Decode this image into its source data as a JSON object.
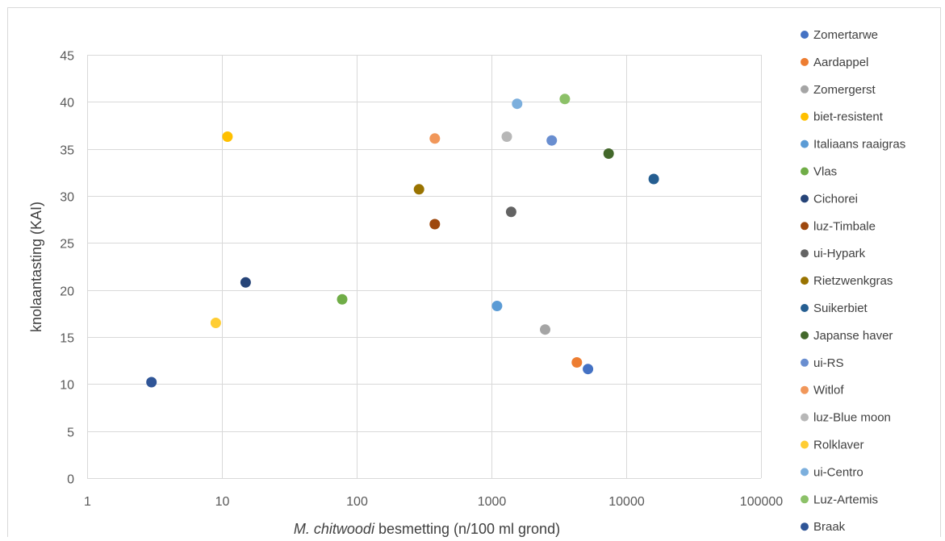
{
  "chart_data": {
    "type": "scatter",
    "title": "",
    "xlabel_italic": "M. chitwoodi",
    "xlabel_rest": " besmetting (n/100 ml grond)",
    "ylabel": "knolaantasting (KAI)",
    "x_scale": "log",
    "xlim": [
      1,
      100000
    ],
    "ylim": [
      0,
      45
    ],
    "x_ticks": [
      1,
      10,
      100,
      1000,
      10000,
      100000
    ],
    "x_tick_labels": [
      "1",
      "10",
      "100",
      "1000",
      "10000",
      "100000"
    ],
    "y_ticks": [
      0,
      5,
      10,
      15,
      20,
      25,
      30,
      35,
      40,
      45
    ],
    "y_tick_labels": [
      "0",
      "5",
      "10",
      "15",
      "20",
      "25",
      "30",
      "35",
      "40",
      "45"
    ],
    "grid": true,
    "legend_position": "right",
    "series": [
      {
        "name": "Zomertarwe",
        "color": "#4472C4",
        "points": [
          [
            5200,
            11.6
          ]
        ]
      },
      {
        "name": "Aardappel",
        "color": "#ED7D31",
        "points": [
          [
            4300,
            12.3
          ]
        ]
      },
      {
        "name": "Zomergerst",
        "color": "#A5A5A5",
        "points": [
          [
            2500,
            15.8
          ]
        ]
      },
      {
        "name": "biet-resistent",
        "color": "#FFC000",
        "points": [
          [
            11,
            36.3
          ]
        ]
      },
      {
        "name": "Italiaans raaigras",
        "color": "#5B9BD5",
        "points": [
          [
            1100,
            18.3
          ]
        ]
      },
      {
        "name": "Vlas",
        "color": "#70AD47",
        "points": [
          [
            78,
            19.0
          ]
        ]
      },
      {
        "name": "Cichorei",
        "color": "#264478",
        "points": [
          [
            15,
            20.8
          ]
        ]
      },
      {
        "name": "luz-Timbale",
        "color": "#9E480E",
        "points": [
          [
            380,
            27.0
          ]
        ]
      },
      {
        "name": "ui-Hypark",
        "color": "#636363",
        "points": [
          [
            1400,
            28.3
          ]
        ]
      },
      {
        "name": "Rietzwenkgras",
        "color": "#997300",
        "points": [
          [
            290,
            30.7
          ]
        ]
      },
      {
        "name": "Suikerbiet",
        "color": "#255E91",
        "points": [
          [
            16000,
            31.8
          ]
        ]
      },
      {
        "name": "Japanse haver",
        "color": "#43682B",
        "points": [
          [
            7400,
            34.5
          ]
        ]
      },
      {
        "name": "ui-RS",
        "color": "#698ED0",
        "points": [
          [
            2800,
            35.9
          ]
        ]
      },
      {
        "name": "Witlof",
        "color": "#F1975A",
        "points": [
          [
            380,
            36.1
          ]
        ]
      },
      {
        "name": "luz-Blue moon",
        "color": "#B7B7B7",
        "points": [
          [
            1300,
            36.3
          ]
        ]
      },
      {
        "name": "Rolklaver",
        "color": "#FFCD33",
        "points": [
          [
            9,
            16.5
          ]
        ]
      },
      {
        "name": "ui-Centro",
        "color": "#7CAFDD",
        "points": [
          [
            1550,
            39.8
          ]
        ]
      },
      {
        "name": "Luz-Artemis",
        "color": "#8CC168",
        "points": [
          [
            3500,
            40.3
          ]
        ]
      },
      {
        "name": "Braak",
        "color": "#2F5597",
        "points": [
          [
            3,
            10.2
          ]
        ]
      }
    ]
  }
}
